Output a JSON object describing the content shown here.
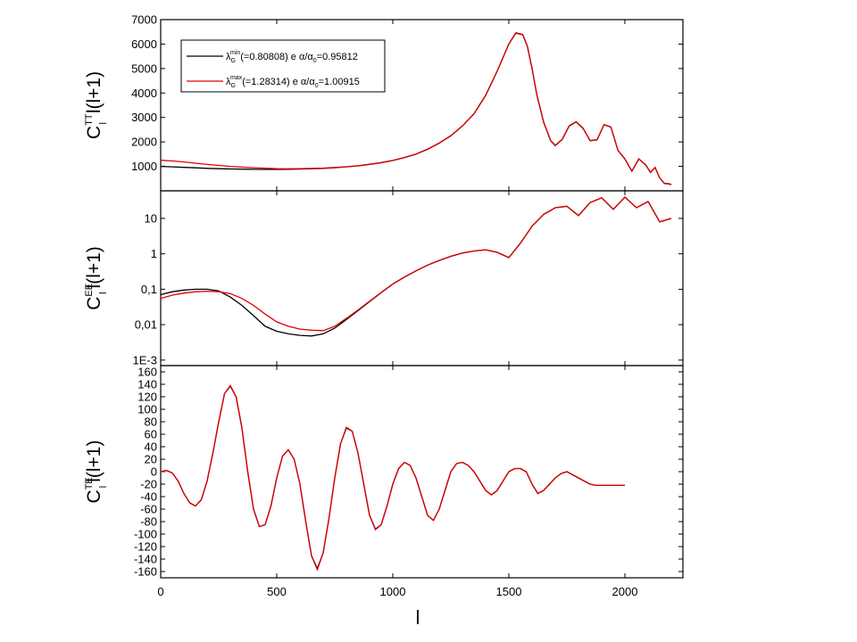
{
  "chart_data": [
    {
      "type": "line",
      "ylabel": {
        "main": "C",
        "sup": "TT",
        "sub": "l",
        "rest": " l(l+1)"
      },
      "ylim": [
        0,
        7000
      ],
      "yticks": [
        1000,
        2000,
        3000,
        4000,
        5000,
        6000,
        7000
      ],
      "ytick_labels": [
        "1000",
        "2000",
        "3000",
        "4000",
        "5000",
        "6000",
        "7000"
      ],
      "log": false,
      "legend": {
        "placement": "top-left",
        "entries": [
          {
            "sym": "λ",
            "sub": "G",
            "sup": "min",
            "text": "(=0.80808) e α/α",
            "sub2": "0",
            "text2": "=0.95812",
            "color": "#000000"
          },
          {
            "sym": "λ",
            "sub": "G",
            "sup": "max",
            "text": "(=1.28314) e α/α",
            "sub2": "0",
            "text2": "=1.00915",
            "color": "#e00000"
          }
        ]
      },
      "series": [
        {
          "color": "#000000",
          "x": [
            0,
            50,
            100,
            150,
            200,
            250,
            300,
            350,
            400,
            450,
            500,
            550,
            600,
            650,
            700,
            750,
            800,
            850,
            900,
            950,
            1000,
            1050,
            1100,
            1150,
            1200,
            1250,
            1300,
            1350,
            1400,
            1450,
            1500,
            1530,
            1560,
            1580,
            1600,
            1620,
            1650,
            1680,
            1700,
            1730,
            1760,
            1790,
            1820,
            1850,
            1880,
            1910,
            1940,
            1970,
            2000,
            2030,
            2060,
            2090,
            2110,
            2130,
            2150,
            2170,
            2190,
            2200
          ],
          "y": [
            1000,
            980,
            960,
            940,
            920,
            905,
            895,
            885,
            880,
            875,
            875,
            880,
            890,
            905,
            920,
            945,
            980,
            1020,
            1080,
            1150,
            1240,
            1360,
            1500,
            1700,
            1950,
            2250,
            2650,
            3150,
            3900,
            4900,
            6000,
            6450,
            6380,
            5900,
            5000,
            3950,
            2800,
            2050,
            1850,
            2100,
            2650,
            2820,
            2550,
            2050,
            2080,
            2700,
            2600,
            1650,
            1300,
            800,
            1300,
            1050,
            750,
            950,
            520,
            300,
            280,
            250
          ]
        },
        {
          "color": "#e00000",
          "x": [
            0,
            50,
            100,
            150,
            200,
            250,
            300,
            350,
            400,
            450,
            500,
            550,
            600,
            650,
            700,
            750,
            800,
            850,
            900,
            950,
            1000,
            1050,
            1100,
            1150,
            1200,
            1250,
            1300,
            1350,
            1400,
            1450,
            1500,
            1530,
            1560,
            1580,
            1600,
            1620,
            1650,
            1680,
            1700,
            1730,
            1760,
            1790,
            1820,
            1850,
            1880,
            1910,
            1940,
            1970,
            2000,
            2030,
            2060,
            2090,
            2110,
            2130,
            2150,
            2170,
            2190,
            2200
          ],
          "y": [
            1250,
            1220,
            1180,
            1130,
            1080,
            1040,
            1000,
            970,
            945,
            925,
            905,
            900,
            905,
            915,
            930,
            955,
            985,
            1025,
            1085,
            1155,
            1245,
            1365,
            1505,
            1705,
            1955,
            2255,
            2655,
            3155,
            3905,
            4905,
            6010,
            6460,
            6390,
            5910,
            5010,
            3960,
            2810,
            2060,
            1860,
            2110,
            2660,
            2830,
            2560,
            2060,
            2090,
            2710,
            2610,
            1660,
            1310,
            810,
            1310,
            1060,
            760,
            960,
            530,
            310,
            290,
            260
          ]
        }
      ]
    },
    {
      "type": "line",
      "ylabel": {
        "main": "C",
        "sup": "EE",
        "sub": "l",
        "rest": "l(l+1)"
      },
      "ylim": [
        0.0007,
        60
      ],
      "yticks": [
        0.001,
        0.01,
        0.1,
        1,
        10
      ],
      "ytick_labels": [
        "1E-3",
        "0,01",
        "0,1",
        "1",
        "10"
      ],
      "log": true,
      "series": [
        {
          "color": "#000000",
          "x": [
            0,
            50,
            100,
            150,
            200,
            250,
            300,
            350,
            400,
            450,
            500,
            550,
            600,
            650,
            700,
            750,
            800,
            850,
            900,
            950,
            1000,
            1050,
            1100,
            1150,
            1200,
            1250,
            1300,
            1350,
            1400,
            1450,
            1500,
            1550,
            1600,
            1650,
            1700,
            1750,
            1800,
            1850,
            1900,
            1950,
            2000,
            2050,
            2100,
            2150,
            2200
          ],
          "y": [
            0.07,
            0.085,
            0.095,
            0.1,
            0.1,
            0.09,
            0.06,
            0.035,
            0.018,
            0.009,
            0.0065,
            0.0055,
            0.005,
            0.0048,
            0.0055,
            0.008,
            0.014,
            0.025,
            0.045,
            0.08,
            0.14,
            0.22,
            0.33,
            0.48,
            0.65,
            0.85,
            1.05,
            1.2,
            1.3,
            1.1,
            0.78,
            2.0,
            6.0,
            13,
            20,
            22,
            12,
            28,
            38,
            18,
            40,
            20,
            30,
            8,
            10
          ]
        },
        {
          "color": "#e00000",
          "x": [
            0,
            50,
            100,
            150,
            200,
            250,
            300,
            350,
            400,
            450,
            500,
            550,
            600,
            650,
            700,
            750,
            800,
            850,
            900,
            950,
            1000,
            1050,
            1100,
            1150,
            1200,
            1250,
            1300,
            1350,
            1400,
            1450,
            1500,
            1550,
            1600,
            1650,
            1700,
            1750,
            1800,
            1850,
            1900,
            1950,
            2000,
            2050,
            2100,
            2150,
            2200
          ],
          "y": [
            0.055,
            0.068,
            0.078,
            0.085,
            0.088,
            0.085,
            0.075,
            0.055,
            0.035,
            0.02,
            0.012,
            0.009,
            0.0075,
            0.007,
            0.0068,
            0.009,
            0.015,
            0.026,
            0.046,
            0.081,
            0.141,
            0.221,
            0.331,
            0.481,
            0.651,
            0.851,
            1.05,
            1.2,
            1.3,
            1.1,
            0.78,
            2.0,
            6.0,
            13,
            20,
            22,
            12,
            28,
            38,
            18,
            40,
            20,
            30,
            8,
            10
          ]
        }
      ]
    },
    {
      "type": "line",
      "ylabel": {
        "main": "C",
        "sup": "TE",
        "sub": "l",
        "rest": "l(l+1)"
      },
      "ylim": [
        -170,
        170
      ],
      "yticks": [
        -160,
        -140,
        -120,
        -100,
        -80,
        -60,
        -40,
        -20,
        0,
        20,
        40,
        60,
        80,
        100,
        120,
        140,
        160
      ],
      "ytick_labels": [
        "-160",
        "-140",
        "-120",
        "-100",
        "-80",
        "-60",
        "-40",
        "-20",
        "0",
        "20",
        "40",
        "60",
        "80",
        "100",
        "120",
        "140",
        "160"
      ],
      "log": false,
      "xlabel": "l",
      "xlim": [
        0,
        2250
      ],
      "xticks": [
        0,
        500,
        1000,
        1500,
        2000
      ],
      "xtick_labels": [
        "0",
        "500",
        "1000",
        "1500",
        "2000"
      ],
      "series": [
        {
          "color": "#000000",
          "x": [
            0,
            25,
            50,
            75,
            100,
            125,
            150,
            175,
            200,
            225,
            250,
            275,
            300,
            325,
            350,
            375,
            400,
            425,
            450,
            475,
            500,
            525,
            550,
            575,
            600,
            625,
            650,
            675,
            700,
            725,
            750,
            775,
            800,
            825,
            850,
            875,
            900,
            925,
            950,
            975,
            1000,
            1025,
            1050,
            1075,
            1100,
            1125,
            1150,
            1175,
            1200,
            1225,
            1250,
            1275,
            1300,
            1325,
            1350,
            1375,
            1400,
            1425,
            1450,
            1475,
            1500,
            1525,
            1550,
            1575,
            1600,
            1625,
            1650,
            1675,
            1700,
            1725,
            1750,
            1775,
            1800,
            1825,
            1850,
            1875,
            1900,
            1925,
            1950,
            1975,
            2000
          ],
          "y": [
            0,
            2,
            -2,
            -15,
            -35,
            -50,
            -55,
            -45,
            -15,
            30,
            80,
            125,
            137,
            120,
            70,
            0,
            -60,
            -88,
            -85,
            -55,
            -10,
            25,
            35,
            20,
            -20,
            -80,
            -135,
            -155,
            -130,
            -75,
            -10,
            45,
            70,
            65,
            30,
            -20,
            -70,
            -92,
            -85,
            -55,
            -20,
            5,
            15,
            10,
            -10,
            -40,
            -70,
            -78,
            -60,
            -30,
            0,
            13,
            15,
            10,
            0,
            -15,
            -30,
            -37,
            -30,
            -15,
            0,
            5,
            5,
            0,
            -20,
            -35,
            -30,
            -20,
            -10,
            -3,
            0,
            -5,
            -10,
            -15,
            -20,
            -22,
            -22,
            -22,
            -22,
            -22,
            -22
          ],
          "xshift": 0
        },
        {
          "color": "#e00000",
          "x": [
            0,
            25,
            50,
            75,
            100,
            125,
            150,
            175,
            200,
            225,
            250,
            275,
            300,
            325,
            350,
            375,
            400,
            425,
            450,
            475,
            500,
            525,
            550,
            575,
            600,
            625,
            650,
            675,
            700,
            725,
            750,
            775,
            800,
            825,
            850,
            875,
            900,
            925,
            950,
            975,
            1000,
            1025,
            1050,
            1075,
            1100,
            1125,
            1150,
            1175,
            1200,
            1225,
            1250,
            1275,
            1300,
            1325,
            1350,
            1375,
            1400,
            1425,
            1450,
            1475,
            1500,
            1525,
            1550,
            1575,
            1600,
            1625,
            1650,
            1675,
            1700,
            1725,
            1750,
            1775,
            1800,
            1825,
            1850,
            1875,
            1900,
            1925,
            1950,
            1975,
            2000
          ],
          "y": [
            0,
            2,
            -2,
            -15,
            -35,
            -50,
            -55,
            -45,
            -15,
            30,
            80,
            125,
            138,
            120,
            70,
            0,
            -60,
            -88,
            -85,
            -55,
            -10,
            25,
            35,
            20,
            -20,
            -80,
            -135,
            -157,
            -130,
            -75,
            -10,
            45,
            71,
            65,
            30,
            -20,
            -70,
            -93,
            -85,
            -55,
            -20,
            5,
            15,
            10,
            -10,
            -40,
            -70,
            -78,
            -60,
            -30,
            0,
            13,
            15,
            10,
            0,
            -15,
            -30,
            -37,
            -30,
            -15,
            0,
            5,
            5,
            0,
            -20,
            -35,
            -30,
            -20,
            -10,
            -3,
            0,
            -5,
            -10,
            -15,
            -20,
            -22,
            -22,
            -22,
            -22,
            -22,
            -22
          ]
        }
      ]
    }
  ]
}
